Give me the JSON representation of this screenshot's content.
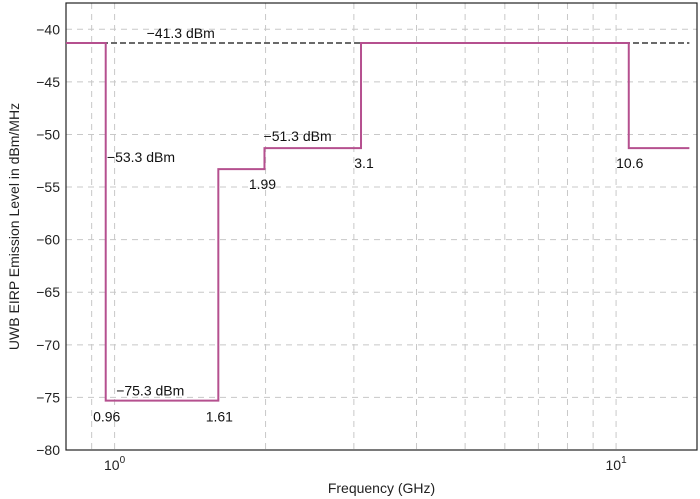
{
  "chart_data": {
    "type": "line",
    "title": "",
    "xlabel": "Frequency (GHz)",
    "ylabel": "UWB EIRP Emission Level in dBm/MHz",
    "xscale": "log",
    "xlim": [
      0.8,
      14.5
    ],
    "ylim": [
      -80,
      -37.5
    ],
    "grid": true,
    "x_ticks": [
      {
        "value": 1,
        "base": "10",
        "exp": "0"
      },
      {
        "value": 10,
        "base": "10",
        "exp": "1"
      }
    ],
    "y_ticks": [
      {
        "value": -40,
        "label": "−40"
      },
      {
        "value": -45,
        "label": "−45"
      },
      {
        "value": -50,
        "label": "−50"
      },
      {
        "value": -55,
        "label": "−55"
      },
      {
        "value": -60,
        "label": "−60"
      },
      {
        "value": -65,
        "label": "−65"
      },
      {
        "value": -70,
        "label": "−70"
      },
      {
        "value": -75,
        "label": "−75"
      },
      {
        "value": -80,
        "label": "−80"
      }
    ],
    "series": [
      {
        "color": "#b5508f",
        "style": "step",
        "x": [
          0.8,
          0.96,
          0.96,
          1.61,
          1.61,
          1.99,
          1.99,
          3.1,
          3.1,
          10.6,
          10.6,
          14.0
        ],
        "y": [
          -41.3,
          -41.3,
          -75.3,
          -75.3,
          -53.3,
          -53.3,
          -51.3,
          -51.3,
          -41.3,
          -41.3,
          -51.3,
          -51.3
        ]
      }
    ],
    "reference_line": {
      "y": -41.3,
      "x": [
        0.8,
        14.0
      ],
      "color": "#111111",
      "style": "dashed"
    },
    "annotations": [
      {
        "text": "−41.3 dBm",
        "x": 1.27,
        "y": -41.3
      },
      {
        "text": "−53.3 dBm",
        "x": 1.22,
        "y": -53.3
      },
      {
        "text": "−51.3 dBm",
        "x": 2.0,
        "y": -51.3
      },
      {
        "text": "−75.3 dBm",
        "x": 0.98,
        "y": -75.3
      },
      {
        "text": "0.96",
        "x": 0.96,
        "y": -75.3
      },
      {
        "text": "1.61",
        "x": 1.61,
        "y": -75.3
      },
      {
        "text": "1.99",
        "x": 1.99,
        "y": -53.3
      },
      {
        "text": "3.1",
        "x": 3.1,
        "y": -51.3
      },
      {
        "text": "10.6",
        "x": 10.6,
        "y": -51.3
      }
    ]
  }
}
